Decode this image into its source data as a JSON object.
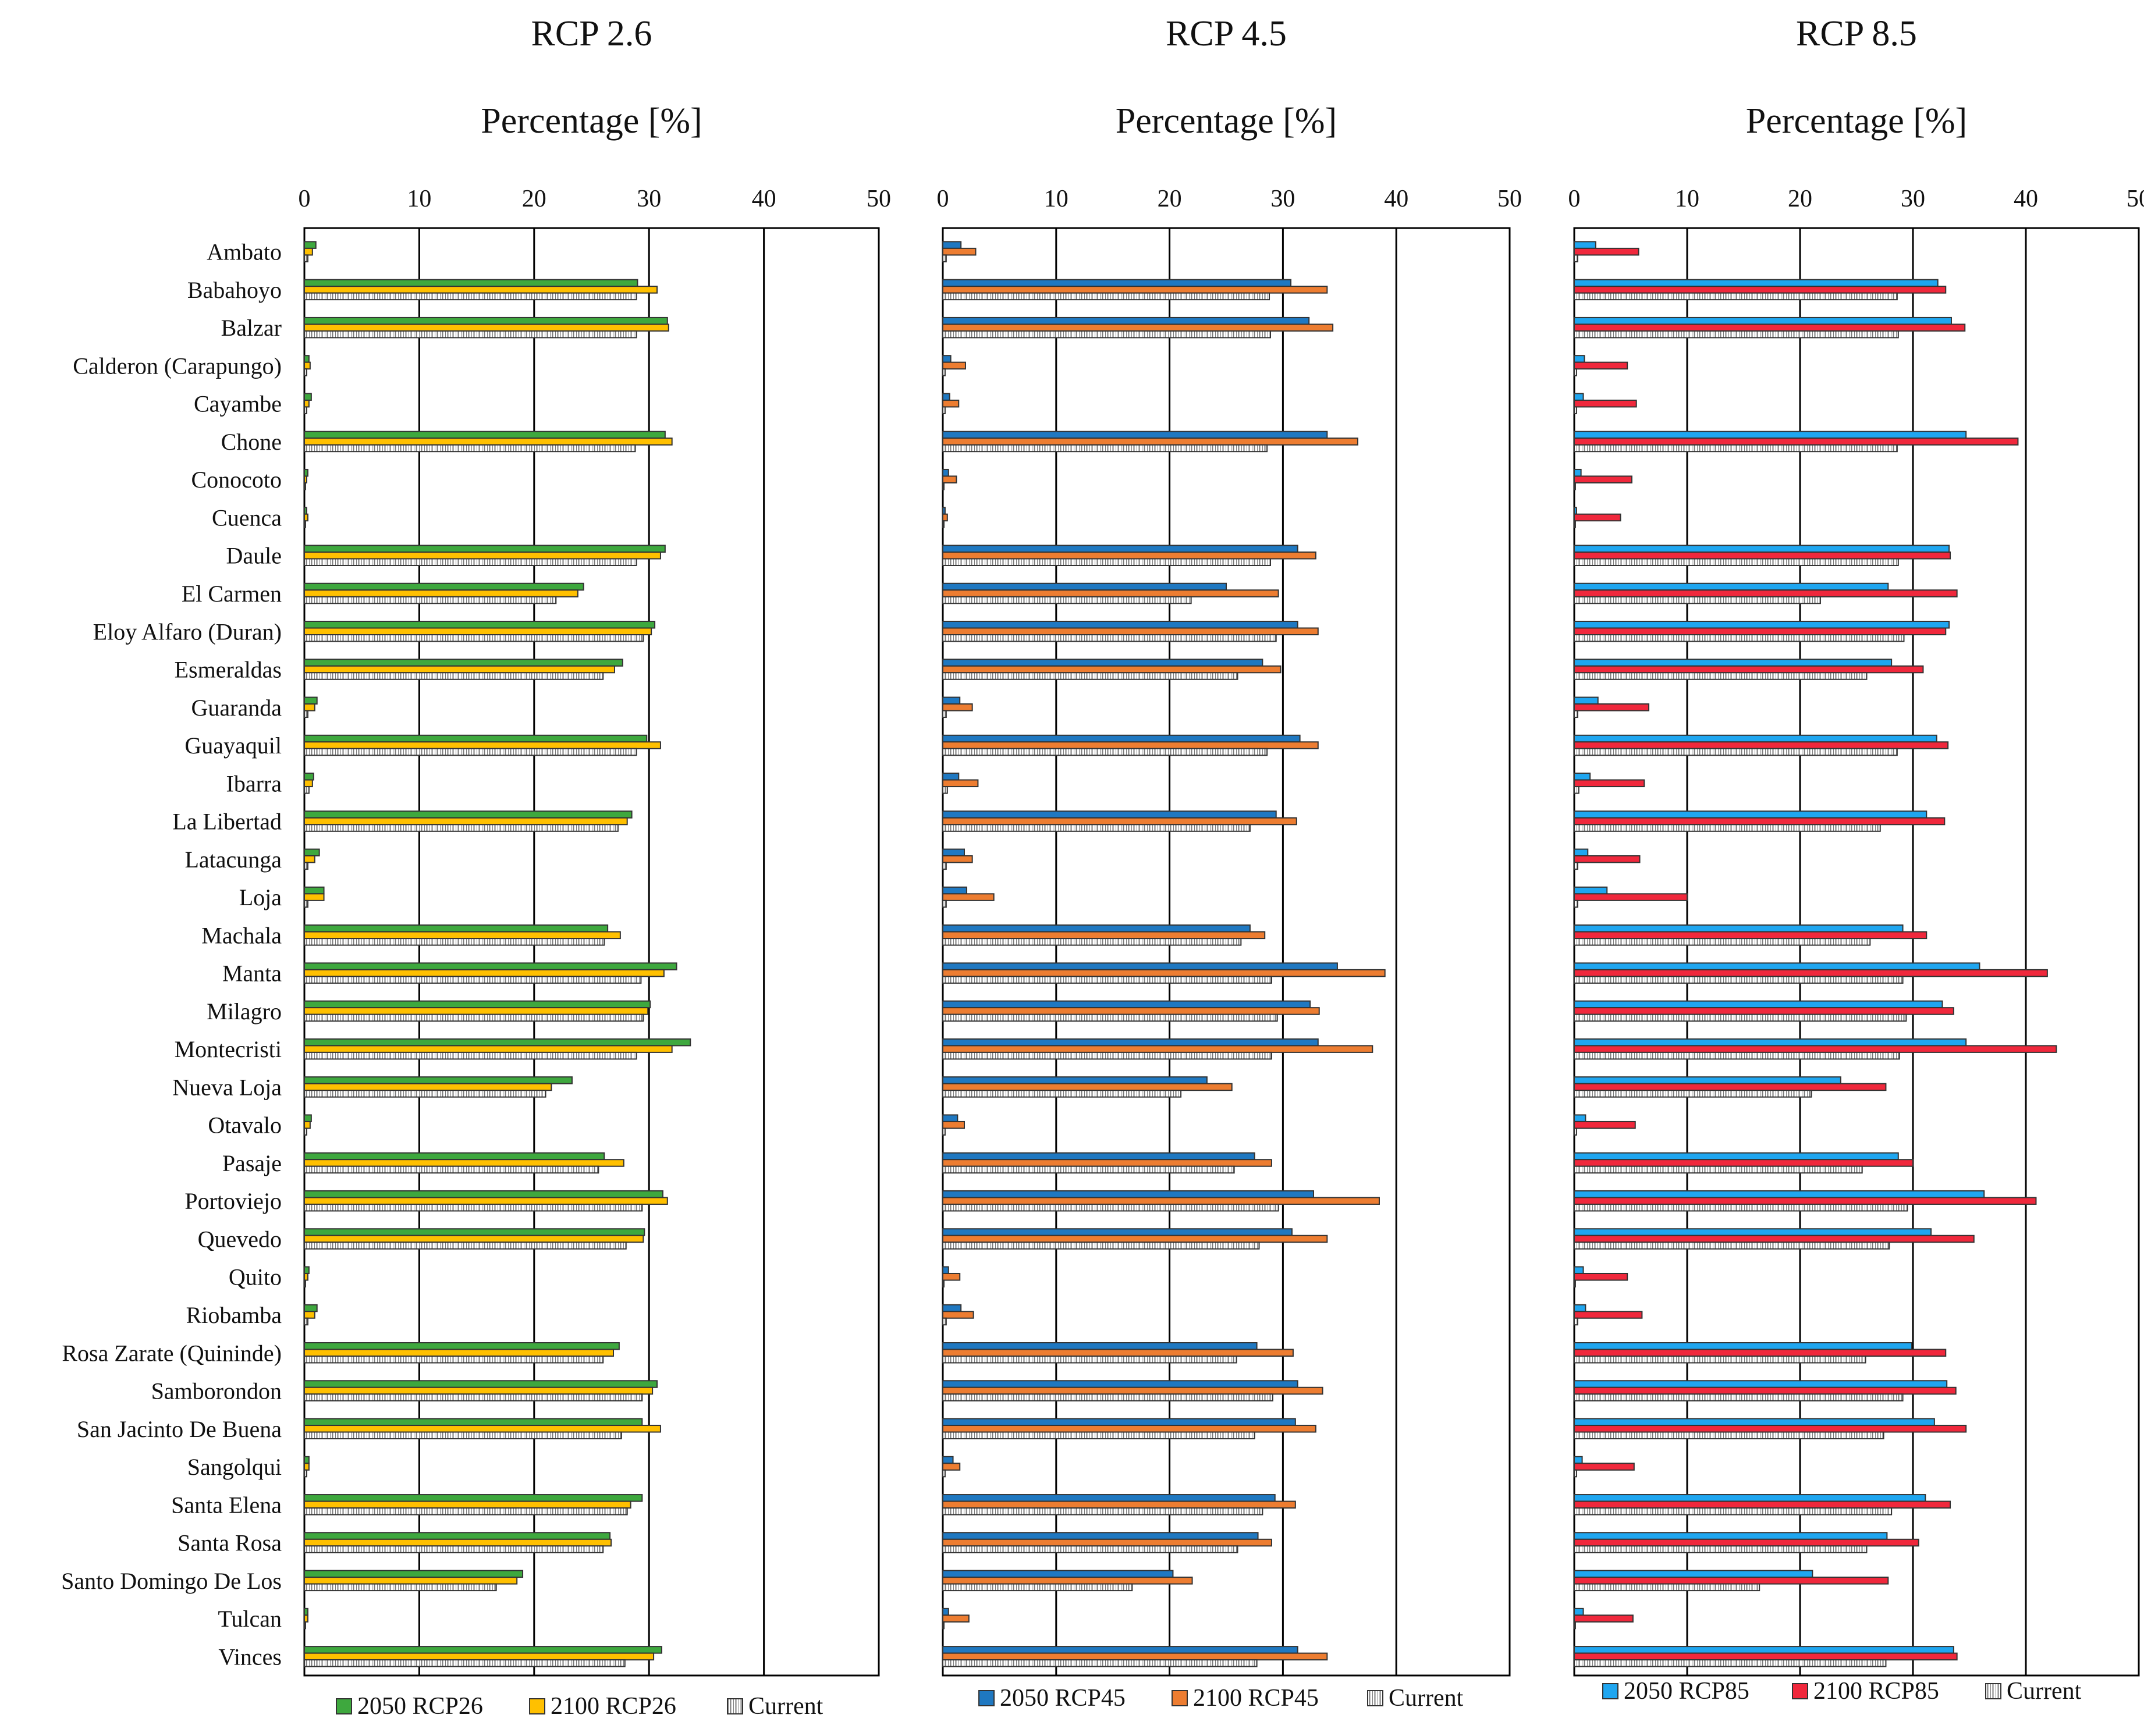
{
  "colors": {
    "2050 RCP26": "#3ea83e",
    "2100 RCP26": "#ffc000",
    "2050 RCP45": "#1f78c1",
    "2100 RCP45": "#ed7d31",
    "2050 RCP85": "#1fa6f0",
    "2100 RCP85": "#f0283c",
    "Current": "#9a9a9a"
  },
  "chart_data": [
    {
      "type": "bar",
      "orientation": "horizontal",
      "title": "RCP 2.6",
      "xlabel": "Percentage [%]",
      "xlim": [
        0,
        50
      ],
      "xticks": [
        0,
        10,
        20,
        30,
        40,
        50
      ],
      "grid": true,
      "legend": "bottom",
      "categories": [
        "Ambato",
        "Babahoyo",
        "Balzar",
        "Calderon (Carapungo)",
        "Cayambe",
        "Chone",
        "Conocoto",
        "Cuenca",
        "Daule",
        "El Carmen",
        "Eloy Alfaro (Duran)",
        "Esmeraldas",
        "Guaranda",
        "Guayaquil",
        "Ibarra",
        "La Libertad",
        "Latacunga",
        "Loja",
        "Machala",
        "Manta",
        "Milagro",
        "Montecristi",
        "Nueva Loja",
        "Otavalo",
        "Pasaje",
        "Portoviejo",
        "Quevedo",
        "Quito",
        "Riobamba",
        "Rosa Zarate (Quininde)",
        "Samborondon",
        "San Jacinto De Buena",
        "Sangolqui",
        "Santa Elena",
        "Santa Rosa",
        "Santo Domingo De Los",
        "Tulcan",
        "Vinces"
      ],
      "series": [
        {
          "name": "2050 RCP26",
          "values": [
            1.0,
            29,
            31.6,
            0.4,
            0.6,
            31.4,
            0.3,
            0.2,
            31.4,
            24.3,
            30.5,
            27.7,
            1.1,
            29.8,
            0.8,
            28.5,
            1.3,
            1.7,
            26.4,
            32.4,
            30.1,
            33.6,
            23.3,
            0.6,
            26.1,
            31.2,
            29.6,
            0.4,
            1.1,
            27.4,
            30.7,
            29.4,
            0.4,
            29.4,
            26.6,
            19.0,
            0.3,
            31.1
          ]
        },
        {
          "name": "2100 RCP26",
          "values": [
            0.7,
            30.7,
            31.7,
            0.5,
            0.4,
            32.0,
            0.2,
            0.3,
            31.0,
            23.8,
            30.2,
            27.0,
            0.9,
            31.0,
            0.7,
            28.1,
            0.9,
            1.7,
            27.5,
            31.3,
            29.9,
            32.0,
            21.5,
            0.5,
            27.8,
            31.6,
            29.5,
            0.3,
            0.9,
            26.9,
            30.3,
            31.0,
            0.4,
            28.4,
            26.7,
            18.5,
            0.3,
            30.4
          ]
        },
        {
          "name": "Current",
          "values": [
            0.3,
            28.9,
            28.9,
            0.2,
            0.2,
            28.8,
            0.1,
            0.1,
            28.9,
            21.9,
            29.5,
            26.0,
            0.3,
            28.9,
            0.4,
            27.3,
            0.3,
            0.3,
            26.1,
            29.3,
            29.5,
            28.9,
            21.0,
            0.2,
            25.6,
            29.4,
            28.0,
            0.1,
            0.3,
            26.0,
            29.4,
            27.6,
            0.2,
            28.1,
            26.0,
            16.7,
            0.1,
            27.9
          ]
        }
      ]
    },
    {
      "type": "bar",
      "orientation": "horizontal",
      "title": "RCP 4.5",
      "xlabel": "Percentage [%]",
      "xlim": [
        0,
        50
      ],
      "xticks": [
        0,
        10,
        20,
        30,
        40,
        50
      ],
      "grid": true,
      "legend": "bottom",
      "categories": [
        "Ambato",
        "Babahoyo",
        "Balzar",
        "Calderon (Carapungo)",
        "Cayambe",
        "Chone",
        "Conocoto",
        "Cuenca",
        "Daule",
        "El Carmen",
        "Eloy Alfaro (Duran)",
        "Esmeraldas",
        "Guaranda",
        "Guayaquil",
        "Ibarra",
        "La Libertad",
        "Latacunga",
        "Loja",
        "Machala",
        "Manta",
        "Milagro",
        "Montecristi",
        "Nueva Loja",
        "Otavalo",
        "Pasaje",
        "Portoviejo",
        "Quevedo",
        "Quito",
        "Riobamba",
        "Rosa Zarate (Quininde)",
        "Samborondon",
        "San Jacinto De Buena",
        "Sangolqui",
        "Santa Elena",
        "Santa Rosa",
        "Santo Domingo De Los",
        "Tulcan",
        "Vinces"
      ],
      "series": [
        {
          "name": "2050 RCP45",
          "values": [
            1.6,
            30.7,
            32.3,
            0.7,
            0.6,
            33.9,
            0.5,
            0.2,
            31.3,
            25.0,
            31.3,
            28.2,
            1.5,
            31.5,
            1.4,
            29.4,
            1.9,
            2.1,
            27.1,
            34.8,
            32.4,
            33.1,
            23.3,
            1.3,
            27.5,
            32.7,
            30.8,
            0.5,
            1.6,
            27.7,
            31.3,
            31.1,
            0.9,
            29.3,
            27.8,
            20.3,
            0.5,
            31.3
          ]
        },
        {
          "name": "2100 RCP45",
          "values": [
            2.9,
            33.9,
            34.4,
            2.0,
            1.4,
            36.6,
            1.2,
            0.4,
            32.9,
            29.6,
            33.1,
            29.8,
            2.6,
            33.1,
            3.1,
            31.2,
            2.6,
            4.5,
            28.4,
            39.0,
            33.2,
            37.9,
            25.5,
            1.9,
            29.0,
            38.5,
            33.9,
            1.5,
            2.7,
            30.9,
            33.5,
            32.9,
            1.5,
            31.1,
            29.0,
            22.0,
            2.3,
            33.9
          ]
        },
        {
          "name": "Current",
          "values": [
            0.3,
            28.8,
            28.9,
            0.2,
            0.2,
            28.6,
            0.1,
            0.1,
            28.9,
            21.9,
            29.4,
            26.0,
            0.3,
            28.6,
            0.4,
            27.1,
            0.3,
            0.3,
            26.3,
            29.0,
            29.5,
            29.0,
            21.0,
            0.2,
            25.7,
            29.6,
            27.9,
            0.1,
            0.3,
            25.9,
            29.1,
            27.5,
            0.2,
            28.2,
            26.0,
            16.7,
            0.1,
            27.7
          ]
        }
      ]
    },
    {
      "type": "bar",
      "orientation": "horizontal",
      "title": "RCP 8.5",
      "xlabel": "Percentage [%]",
      "xlim": [
        0,
        50
      ],
      "xticks": [
        0,
        10,
        20,
        30,
        40,
        50
      ],
      "grid": true,
      "legend": "bottom",
      "categories": [
        "Ambato",
        "Babahoyo",
        "Balzar",
        "Calderon (Carapungo)",
        "Cayambe",
        "Chone",
        "Conocoto",
        "Cuenca",
        "Daule",
        "El Carmen",
        "Eloy Alfaro (Duran)",
        "Esmeraldas",
        "Guaranda",
        "Guayaquil",
        "Ibarra",
        "La Libertad",
        "Latacunga",
        "Loja",
        "Machala",
        "Manta",
        "Milagro",
        "Montecristi",
        "Nueva Loja",
        "Otavalo",
        "Pasaje",
        "Portoviejo",
        "Quevedo",
        "Quito",
        "Riobamba",
        "Rosa Zarate (Quininde)",
        "Samborondon",
        "San Jacinto De Buena",
        "Sangolqui",
        "Santa Elena",
        "Santa Rosa",
        "Santo Domingo De Los",
        "Tulcan",
        "Vinces"
      ],
      "series": [
        {
          "name": "2050 RCP85",
          "values": [
            1.9,
            32.2,
            33.4,
            0.9,
            0.8,
            34.7,
            0.6,
            0.2,
            33.2,
            27.8,
            33.2,
            28.1,
            2.1,
            32.1,
            1.4,
            31.2,
            1.2,
            2.9,
            29.1,
            35.9,
            32.6,
            34.7,
            23.6,
            1.0,
            28.7,
            36.3,
            31.6,
            0.8,
            1.0,
            29.9,
            33.0,
            31.9,
            0.7,
            31.1,
            27.7,
            21.1,
            0.8,
            33.6
          ]
        },
        {
          "name": "2100 RCP85",
          "values": [
            5.7,
            32.9,
            34.6,
            4.7,
            5.5,
            39.3,
            5.1,
            4.1,
            33.3,
            33.9,
            32.9,
            30.9,
            6.6,
            33.1,
            6.2,
            32.8,
            5.8,
            10.0,
            31.2,
            41.9,
            33.6,
            42.7,
            27.6,
            5.4,
            30.0,
            40.9,
            35.4,
            4.7,
            6.0,
            32.9,
            33.8,
            34.7,
            5.3,
            33.3,
            30.5,
            27.8,
            5.2,
            33.9
          ]
        },
        {
          "name": "Current",
          "values": [
            0.3,
            28.6,
            28.7,
            0.2,
            0.2,
            28.6,
            0.1,
            0.1,
            28.7,
            21.8,
            29.2,
            25.9,
            0.3,
            28.6,
            0.4,
            27.1,
            0.3,
            0.3,
            26.2,
            29.1,
            29.4,
            28.8,
            21.0,
            0.2,
            25.5,
            29.5,
            27.9,
            0.1,
            0.3,
            25.8,
            29.1,
            27.4,
            0.2,
            28.1,
            25.9,
            16.4,
            0.1,
            27.6
          ]
        }
      ]
    }
  ]
}
